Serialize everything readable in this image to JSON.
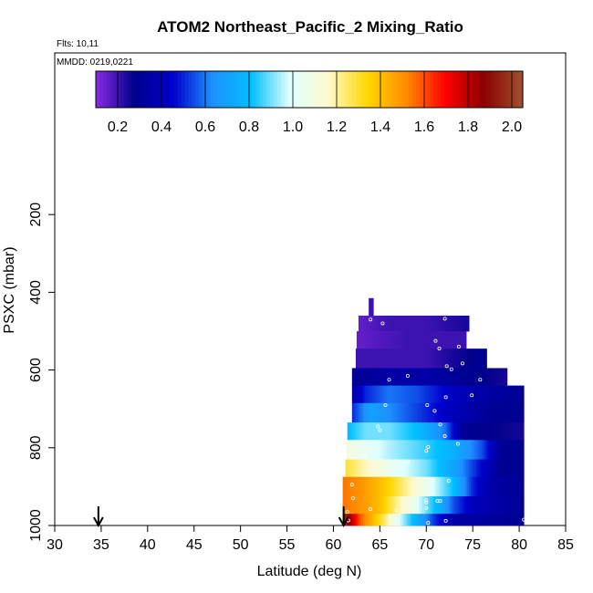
{
  "chart_data": {
    "type": "heatmap",
    "title": "ATOM2 Northeast_Pacific_2 Mixing_Ratio",
    "flights_label": "Flts: 10,11",
    "mmdd_label": "MMDD: 0219,0221",
    "xlabel": "Latitude (deg N)",
    "ylabel": "PSXC (mbar)",
    "xlim": [
      30,
      85
    ],
    "ylim": [
      1000,
      0
    ],
    "x_ticks": [
      "30",
      "35",
      "40",
      "45",
      "50",
      "55",
      "60",
      "65",
      "70",
      "75",
      "80",
      "85"
    ],
    "y_ticks": [
      "200",
      "400",
      "600",
      "800",
      "1000"
    ],
    "colorbar": {
      "range": [
        0.1,
        2.05
      ],
      "tick_labels": [
        "0.2",
        "0.4",
        "0.6",
        "0.8",
        "1.0",
        "1.2",
        "1.4",
        "1.6",
        "1.8",
        "2.0"
      ],
      "colors": [
        "#8a2be2",
        "#00008b",
        "#0000cd",
        "#1e90ff",
        "#00bfff",
        "#e0ffff",
        "#fffacd",
        "#ffd700",
        "#ff8c00",
        "#ff0000",
        "#8b0000",
        "#a0522d"
      ]
    },
    "arrows_latitude": [
      34.7,
      61.1
    ],
    "bands": [
      {
        "p_top": 415,
        "p_bot": 460,
        "x0": 63.8,
        "x1": 64.3,
        "values": [
          [
            63.8,
            0.2
          ]
        ]
      },
      {
        "p_top": 460,
        "p_bot": 500,
        "x0": 62.7,
        "x1": 74.6,
        "values": [
          [
            62.7,
            0.15
          ],
          [
            66,
            0.2
          ],
          [
            70,
            0.2
          ],
          [
            74.6,
            0.25
          ]
        ]
      },
      {
        "p_top": 500,
        "p_bot": 545,
        "x0": 62.5,
        "x1": 74.3,
        "values": [
          [
            62.5,
            0.15
          ],
          [
            68,
            0.2
          ],
          [
            74.3,
            0.2
          ]
        ]
      },
      {
        "p_top": 545,
        "p_bot": 595,
        "x0": 62.4,
        "x1": 76.5,
        "values": [
          [
            62.4,
            0.2
          ],
          [
            70,
            0.2
          ],
          [
            73,
            0.25
          ],
          [
            76.5,
            0.3
          ]
        ]
      },
      {
        "p_top": 595,
        "p_bot": 640,
        "x0": 62.0,
        "x1": 78.7,
        "values": [
          [
            62.0,
            0.3
          ],
          [
            66,
            0.35
          ],
          [
            70,
            0.35
          ],
          [
            74,
            0.3
          ],
          [
            78.7,
            0.25
          ]
        ]
      },
      {
        "p_top": 640,
        "p_bot": 685,
        "x0": 62.0,
        "x1": 80.5,
        "values": [
          [
            62.0,
            0.35
          ],
          [
            63.5,
            0.5
          ],
          [
            66,
            0.6
          ],
          [
            69,
            0.55
          ],
          [
            72,
            0.45
          ],
          [
            76,
            0.35
          ],
          [
            80.5,
            0.3
          ]
        ]
      },
      {
        "p_top": 685,
        "p_bot": 735,
        "x0": 62.0,
        "x1": 80.5,
        "values": [
          [
            62.0,
            0.5
          ],
          [
            64,
            0.7
          ],
          [
            67,
            0.6
          ],
          [
            70,
            0.5
          ],
          [
            73,
            0.4
          ],
          [
            77,
            0.3
          ],
          [
            80.5,
            0.3
          ]
        ]
      },
      {
        "p_top": 735,
        "p_bot": 780,
        "x0": 61.5,
        "x1": 80.5,
        "values": [
          [
            61.5,
            0.8
          ],
          [
            63.5,
            0.9
          ],
          [
            66,
            0.9
          ],
          [
            69,
            0.8
          ],
          [
            72,
            0.6
          ],
          [
            74,
            0.3
          ],
          [
            80.5,
            0.25
          ]
        ]
      },
      {
        "p_top": 780,
        "p_bot": 830,
        "x0": 61.4,
        "x1": 80.5,
        "values": [
          [
            61.4,
            1.1
          ],
          [
            63,
            1.05
          ],
          [
            66,
            0.95
          ],
          [
            70,
            0.85
          ],
          [
            73,
            0.75
          ],
          [
            76,
            0.55
          ],
          [
            78,
            0.3
          ],
          [
            80.5,
            0.3
          ]
        ]
      },
      {
        "p_top": 830,
        "p_bot": 875,
        "x0": 61.3,
        "x1": 80.5,
        "values": [
          [
            61.3,
            1.3
          ],
          [
            63,
            1.2
          ],
          [
            66,
            1.05
          ],
          [
            70,
            0.9
          ],
          [
            73,
            0.7
          ],
          [
            76,
            0.45
          ],
          [
            78,
            0.3
          ],
          [
            80.5,
            0.3
          ]
        ]
      },
      {
        "p_top": 875,
        "p_bot": 925,
        "x0": 61.0,
        "x1": 80.5,
        "values": [
          [
            61.0,
            1.55
          ],
          [
            63,
            1.5
          ],
          [
            66,
            1.35
          ],
          [
            68,
            1.2
          ],
          [
            70,
            1.05
          ],
          [
            73,
            0.8
          ],
          [
            75,
            0.5
          ],
          [
            77,
            0.35
          ],
          [
            80.5,
            0.3
          ]
        ]
      },
      {
        "p_top": 925,
        "p_bot": 970,
        "x0": 61.0,
        "x1": 80.5,
        "values": [
          [
            61.0,
            1.55
          ],
          [
            63,
            1.5
          ],
          [
            65,
            1.4
          ],
          [
            67,
            1.2
          ],
          [
            69,
            1.0
          ],
          [
            71,
            0.8
          ],
          [
            73,
            0.55
          ],
          [
            75,
            0.4
          ],
          [
            80.5,
            0.3
          ]
        ]
      },
      {
        "p_top": 970,
        "p_bot": 1000,
        "x0": 61.0,
        "x1": 80.5,
        "values": [
          [
            61.0,
            2.0
          ],
          [
            61.8,
            1.85
          ],
          [
            62.8,
            1.6
          ],
          [
            64,
            1.45
          ],
          [
            65.5,
            1.25
          ],
          [
            67,
            1.0
          ],
          [
            69,
            0.75
          ],
          [
            71,
            0.5
          ],
          [
            73,
            0.35
          ],
          [
            80.5,
            0.3
          ]
        ]
      }
    ],
    "sample_points": [
      [
        64.0,
        470
      ],
      [
        65.3,
        480
      ],
      [
        72.0,
        468
      ],
      [
        71.0,
        525
      ],
      [
        71.4,
        545
      ],
      [
        73.5,
        540
      ],
      [
        72.2,
        590
      ],
      [
        73.9,
        583
      ],
      [
        72.7,
        598
      ],
      [
        75.8,
        625
      ],
      [
        66.0,
        625
      ],
      [
        68.0,
        615
      ],
      [
        72.1,
        670
      ],
      [
        74.9,
        665
      ],
      [
        70.1,
        690
      ],
      [
        70.9,
        705
      ],
      [
        65.6,
        690
      ],
      [
        64.8,
        745
      ],
      [
        65.0,
        755
      ],
      [
        71.5,
        740
      ],
      [
        72.0,
        770
      ],
      [
        73.4,
        790
      ],
      [
        70.2,
        798
      ],
      [
        70.0,
        808
      ],
      [
        63.3,
        822
      ],
      [
        68.0,
        835
      ],
      [
        70.6,
        883
      ],
      [
        72.4,
        885
      ],
      [
        62.0,
        895
      ],
      [
        70.0,
        935
      ],
      [
        70.0,
        941
      ],
      [
        71.2,
        937
      ],
      [
        71.5,
        937
      ],
      [
        62.1,
        930
      ],
      [
        61.5,
        965
      ],
      [
        64.0,
        958
      ],
      [
        66.8,
        960
      ],
      [
        70.0,
        955
      ],
      [
        72.1,
        988
      ],
      [
        80.5,
        985
      ],
      [
        70.2,
        993
      ],
      [
        61.6,
        987
      ]
    ]
  }
}
